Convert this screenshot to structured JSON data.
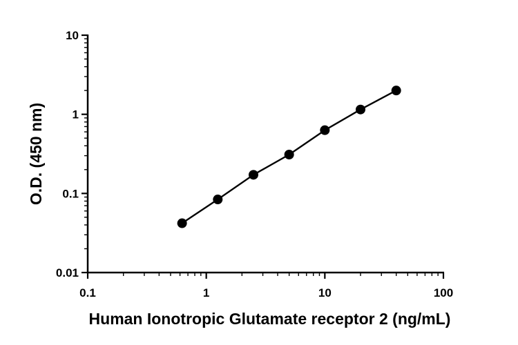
{
  "chart_data": {
    "type": "scatter",
    "xlabel": "Human Ionotropic Glutamate receptor 2 (ng/mL)",
    "ylabel": "O.D. (450 nm)",
    "x_scale": "log",
    "y_scale": "log",
    "xlim": [
      0.1,
      100
    ],
    "ylim": [
      0.01,
      10
    ],
    "x_ticks": [
      {
        "value": 0.1,
        "label": "0.1"
      },
      {
        "value": 1,
        "label": "1"
      },
      {
        "value": 10,
        "label": "10"
      },
      {
        "value": 100,
        "label": "100"
      }
    ],
    "y_ticks": [
      {
        "value": 0.01,
        "label": "0.01"
      },
      {
        "value": 0.1,
        "label": "0.1"
      },
      {
        "value": 1,
        "label": "1"
      },
      {
        "value": 10,
        "label": "10"
      }
    ],
    "grid": false,
    "legend": "none",
    "series": [
      {
        "x": [
          0.625,
          1.25,
          2.5,
          5,
          10,
          20,
          40
        ],
        "y": [
          0.042,
          0.084,
          0.172,
          0.31,
          0.63,
          1.15,
          2.0
        ],
        "marker": "circle",
        "fit_line": true,
        "color": "#000000"
      }
    ]
  }
}
